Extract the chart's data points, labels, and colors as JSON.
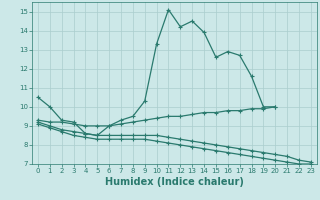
{
  "xlabel": "Humidex (Indice chaleur)",
  "bg_color": "#cce8e8",
  "grid_color": "#aacece",
  "line_color": "#2a7a6e",
  "spine_color": "#2a7a6e",
  "xlim": [
    -0.5,
    23.5
  ],
  "ylim": [
    7,
    15.5
  ],
  "xticks": [
    0,
    1,
    2,
    3,
    4,
    5,
    6,
    7,
    8,
    9,
    10,
    11,
    12,
    13,
    14,
    15,
    16,
    17,
    18,
    19,
    20,
    21,
    22,
    23
  ],
  "yticks": [
    7,
    8,
    9,
    10,
    11,
    12,
    13,
    14,
    15
  ],
  "curve1_x": [
    0,
    1,
    2,
    3,
    4,
    5,
    6,
    7,
    8,
    9,
    10,
    11,
    12,
    13,
    14,
    15,
    16,
    17,
    18,
    19,
    20
  ],
  "curve1_y": [
    10.5,
    10.0,
    9.3,
    9.2,
    8.6,
    8.5,
    9.0,
    9.3,
    9.5,
    10.3,
    13.3,
    15.1,
    14.2,
    14.5,
    13.9,
    12.6,
    12.9,
    12.7,
    11.6,
    10.0,
    10.0
  ],
  "curve1_marker_x": [
    0,
    1,
    2,
    3,
    4,
    5,
    6,
    7,
    8,
    9,
    10,
    11,
    12,
    13,
    14,
    15,
    16,
    17,
    18,
    19,
    20
  ],
  "curve1_marker_y": [
    10.5,
    10.0,
    9.3,
    9.2,
    8.6,
    8.5,
    9.0,
    9.3,
    9.5,
    10.3,
    13.3,
    15.1,
    14.2,
    14.5,
    13.9,
    12.6,
    12.9,
    12.7,
    11.6,
    10.0,
    10.0
  ],
  "curve2_x": [
    0,
    1,
    2,
    3,
    4,
    5,
    6,
    7,
    8,
    9,
    10,
    11,
    12,
    13,
    14,
    15,
    16,
    17,
    18,
    19,
    20
  ],
  "curve2_y": [
    9.3,
    9.2,
    9.2,
    9.1,
    9.0,
    9.0,
    9.0,
    9.1,
    9.2,
    9.3,
    9.4,
    9.5,
    9.5,
    9.6,
    9.7,
    9.7,
    9.8,
    9.8,
    9.9,
    9.9,
    10.0
  ],
  "curve3_x": [
    0,
    1,
    2,
    3,
    4,
    5,
    6,
    7,
    8,
    9,
    10,
    11,
    12,
    13,
    14,
    15,
    16,
    17,
    18,
    19,
    20,
    21,
    22,
    23
  ],
  "curve3_y": [
    9.2,
    9.0,
    8.8,
    8.7,
    8.6,
    8.5,
    8.5,
    8.5,
    8.5,
    8.5,
    8.5,
    8.4,
    8.3,
    8.2,
    8.1,
    8.0,
    7.9,
    7.8,
    7.7,
    7.6,
    7.5,
    7.4,
    7.2,
    7.1
  ],
  "curve4_x": [
    0,
    1,
    2,
    3,
    4,
    5,
    6,
    7,
    8,
    9,
    10,
    11,
    12,
    13,
    14,
    15,
    16,
    17,
    18,
    19,
    20,
    21,
    22,
    23
  ],
  "curve4_y": [
    9.1,
    8.9,
    8.7,
    8.5,
    8.4,
    8.3,
    8.3,
    8.3,
    8.3,
    8.3,
    8.2,
    8.1,
    8.0,
    7.9,
    7.8,
    7.7,
    7.6,
    7.5,
    7.4,
    7.3,
    7.2,
    7.1,
    7.0,
    7.0
  ],
  "xlabel_fontsize": 7,
  "tick_fontsize": 5,
  "lw": 0.9,
  "marker_size": 3
}
